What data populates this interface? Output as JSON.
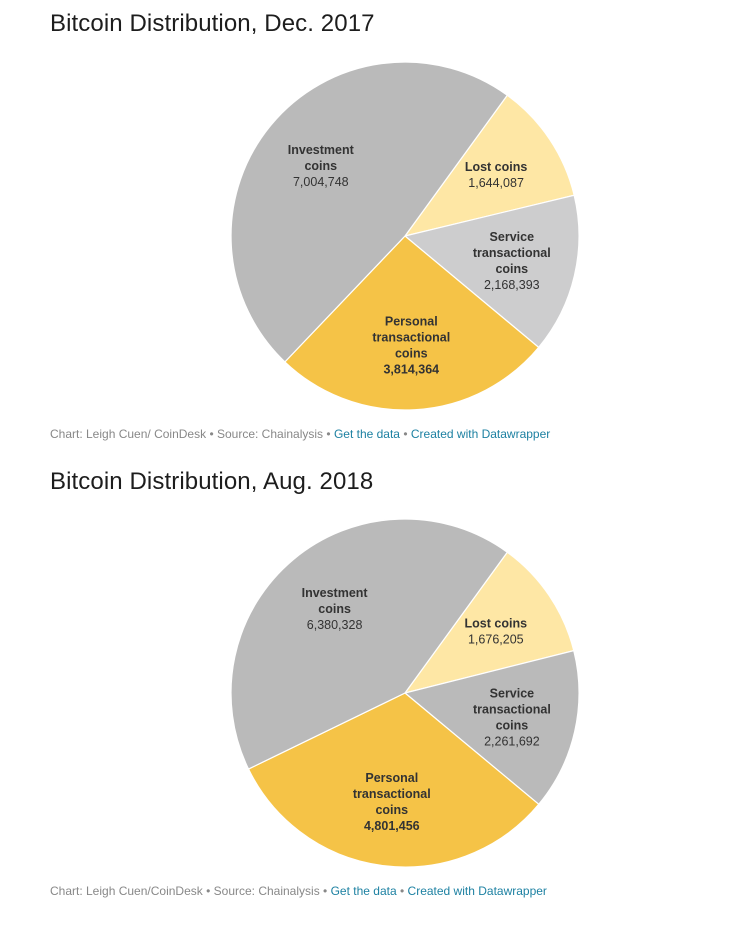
{
  "charts": [
    {
      "title": "Bitcoin Distribution, Dec. 2017",
      "footer": {
        "credit": "Chart: Leigh Cuen/ CoinDesk",
        "source": "Source: Chainalysis",
        "get_data": "Get the data",
        "created_with": "Created with Datawrapper",
        "separator": "•"
      }
    },
    {
      "title": "Bitcoin Distribution, Aug. 2018",
      "footer": {
        "credit": "Chart: Leigh Cuen/CoinDesk",
        "source": "Source: Chainalysis",
        "get_data": "Get the data",
        "created_with": "Created with Datawrapper",
        "separator": "•"
      }
    }
  ],
  "chart_data": [
    {
      "type": "pie",
      "title": "Bitcoin Distribution, Dec. 2017",
      "slices": [
        {
          "name_lines": [
            "Lost coins"
          ],
          "value": 1644087,
          "value_label": "1,644,087",
          "color": "#fee7a5",
          "value_bold": false
        },
        {
          "name_lines": [
            "Service",
            "transactional",
            "coins"
          ],
          "value": 2168393,
          "value_label": "2,168,393",
          "color": "#cdcdce",
          "value_bold": false
        },
        {
          "name_lines": [
            "Personal",
            "transactional",
            "coins"
          ],
          "value": 3814364,
          "value_label": "3,814,364",
          "color": "#f5c347",
          "value_bold": true
        },
        {
          "name_lines": [
            "Investment",
            "coins"
          ],
          "value": 7004748,
          "value_label": "7,004,748",
          "color": "#bababa",
          "value_bold": false
        }
      ]
    },
    {
      "type": "pie",
      "title": "Bitcoin Distribution, Aug. 2018",
      "slices": [
        {
          "name_lines": [
            "Lost coins"
          ],
          "value": 1676205,
          "value_label": "1,676,205",
          "color": "#fee7a5",
          "value_bold": false
        },
        {
          "name_lines": [
            "Service",
            "transactional",
            "coins"
          ],
          "value": 2261692,
          "value_label": "2,261,692",
          "color": "#bababa",
          "value_bold": false
        },
        {
          "name_lines": [
            "Personal",
            "transactional",
            "coins"
          ],
          "value": 4801456,
          "value_label": "4,801,456",
          "color": "#f5c347",
          "value_bold": true
        },
        {
          "name_lines": [
            "Investment",
            "coins"
          ],
          "value": 6380328,
          "value_label": "6,380,328",
          "color": "#bababa",
          "value_bold": false
        }
      ]
    }
  ]
}
